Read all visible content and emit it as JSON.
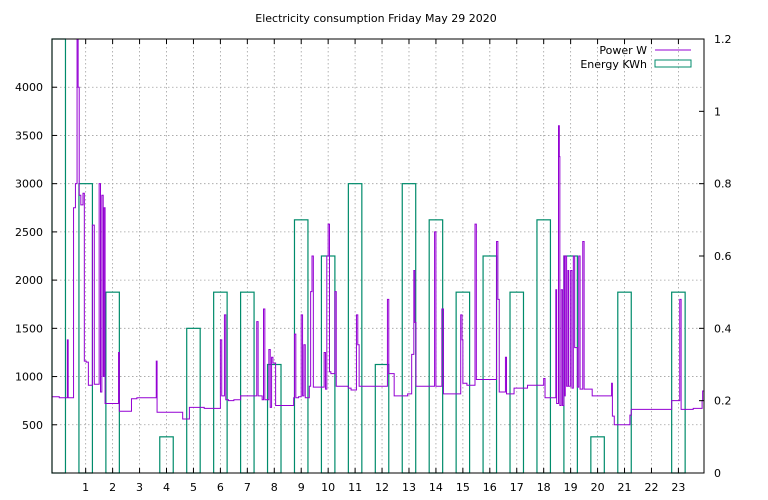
{
  "chart_data": {
    "type": "line",
    "title": "Electricity consumption Friday May 29 2020",
    "xlabel": "",
    "ylabel": "",
    "y2label": "",
    "x_axis": {
      "range": [
        -0.25,
        23.95
      ],
      "ticks": [
        1,
        2,
        3,
        4,
        5,
        6,
        7,
        8,
        9,
        10,
        11,
        12,
        13,
        14,
        15,
        16,
        17,
        18,
        19,
        20,
        21,
        22,
        23
      ]
    },
    "y_axis_left": {
      "range": [
        0,
        4500
      ],
      "ticks": [
        500,
        1000,
        1500,
        2000,
        2500,
        3000,
        3500,
        4000
      ]
    },
    "y_axis_right": {
      "range": [
        0,
        1.2
      ],
      "ticks": [
        0,
        0.2,
        0.4,
        0.6,
        0.8,
        1,
        1.2
      ],
      "tick_labels": [
        "0",
        "0.2",
        "0.4",
        "0.6",
        "0.8",
        "1",
        "1.2"
      ]
    },
    "grid": true,
    "legend_position": "top-right",
    "series": [
      {
        "name": "Power W",
        "style": "steps",
        "axis": "left",
        "color": "#9400d3",
        "points": [
          [
            -0.25,
            790
          ],
          [
            0.02,
            780
          ],
          [
            0.3,
            780
          ],
          [
            0.32,
            1380
          ],
          [
            0.35,
            780
          ],
          [
            0.55,
            2750
          ],
          [
            0.62,
            3000
          ],
          [
            0.68,
            4500
          ],
          [
            0.72,
            4000
          ],
          [
            0.76,
            2880
          ],
          [
            0.82,
            2780
          ],
          [
            0.9,
            2900
          ],
          [
            0.95,
            1160
          ],
          [
            1.02,
            1150
          ],
          [
            1.1,
            910
          ],
          [
            1.25,
            2570
          ],
          [
            1.32,
            920
          ],
          [
            1.45,
            920
          ],
          [
            1.5,
            3000
          ],
          [
            1.55,
            840
          ],
          [
            1.6,
            2880
          ],
          [
            1.65,
            1000
          ],
          [
            1.68,
            2750
          ],
          [
            1.72,
            720
          ],
          [
            2.0,
            720
          ],
          [
            2.2,
            720
          ],
          [
            2.22,
            1250
          ],
          [
            2.25,
            640
          ],
          [
            2.45,
            640
          ],
          [
            2.7,
            770
          ],
          [
            2.9,
            780
          ],
          [
            3.0,
            780
          ],
          [
            3.25,
            780
          ],
          [
            3.6,
            780
          ],
          [
            3.62,
            1160
          ],
          [
            3.65,
            630
          ],
          [
            4.3,
            630
          ],
          [
            4.6,
            560
          ],
          [
            4.85,
            680
          ],
          [
            5.3,
            680
          ],
          [
            5.4,
            670
          ],
          [
            5.95,
            670
          ],
          [
            6.0,
            1380
          ],
          [
            6.05,
            800
          ],
          [
            6.15,
            1640
          ],
          [
            6.2,
            760
          ],
          [
            6.3,
            750
          ],
          [
            6.5,
            760
          ],
          [
            6.75,
            800
          ],
          [
            7.0,
            800
          ],
          [
            7.25,
            800
          ],
          [
            7.35,
            1570
          ],
          [
            7.4,
            800
          ],
          [
            7.55,
            760
          ],
          [
            7.6,
            1700
          ],
          [
            7.65,
            760
          ],
          [
            7.8,
            1280
          ],
          [
            7.85,
            680
          ],
          [
            7.9,
            1200
          ],
          [
            7.95,
            1140
          ],
          [
            8.05,
            700
          ],
          [
            8.6,
            700
          ],
          [
            8.72,
            780
          ],
          [
            8.75,
            1440
          ],
          [
            8.8,
            780
          ],
          [
            8.9,
            790
          ],
          [
            9.0,
            1640
          ],
          [
            9.05,
            800
          ],
          [
            9.1,
            1330
          ],
          [
            9.15,
            780
          ],
          [
            9.3,
            900
          ],
          [
            9.35,
            1880
          ],
          [
            9.4,
            2250
          ],
          [
            9.45,
            890
          ],
          [
            9.75,
            890
          ],
          [
            9.85,
            1250
          ],
          [
            9.9,
            870
          ],
          [
            9.95,
            2250
          ],
          [
            10.0,
            2580
          ],
          [
            10.05,
            1050
          ],
          [
            10.1,
            1030
          ],
          [
            10.25,
            1880
          ],
          [
            10.3,
            900
          ],
          [
            10.5,
            900
          ],
          [
            10.75,
            880
          ],
          [
            10.85,
            860
          ],
          [
            11.05,
            1640
          ],
          [
            11.1,
            1330
          ],
          [
            11.15,
            900
          ],
          [
            11.55,
            900
          ],
          [
            11.7,
            900
          ],
          [
            11.9,
            900
          ],
          [
            12.2,
            1800
          ],
          [
            12.25,
            1030
          ],
          [
            12.3,
            1030
          ],
          [
            12.45,
            800
          ],
          [
            12.55,
            800
          ],
          [
            12.75,
            800
          ],
          [
            12.95,
            820
          ],
          [
            13.1,
            1230
          ],
          [
            13.18,
            2100
          ],
          [
            13.22,
            1560
          ],
          [
            13.26,
            900
          ],
          [
            13.5,
            900
          ],
          [
            13.9,
            900
          ],
          [
            13.95,
            2500
          ],
          [
            14.0,
            900
          ],
          [
            14.2,
            900
          ],
          [
            14.22,
            1700
          ],
          [
            14.28,
            820
          ],
          [
            14.6,
            820
          ],
          [
            14.75,
            820
          ],
          [
            14.92,
            1640
          ],
          [
            14.97,
            1380
          ],
          [
            15.0,
            930
          ],
          [
            15.15,
            910
          ],
          [
            15.45,
            2580
          ],
          [
            15.5,
            970
          ],
          [
            15.8,
            970
          ],
          [
            16.05,
            970
          ],
          [
            16.25,
            2400
          ],
          [
            16.3,
            1800
          ],
          [
            16.35,
            840
          ],
          [
            16.5,
            840
          ],
          [
            16.58,
            1200
          ],
          [
            16.62,
            820
          ],
          [
            16.8,
            820
          ],
          [
            16.9,
            880
          ],
          [
            17.2,
            880
          ],
          [
            17.4,
            910
          ],
          [
            17.6,
            910
          ],
          [
            17.85,
            910
          ],
          [
            18.0,
            980
          ],
          [
            18.05,
            780
          ],
          [
            18.15,
            780
          ],
          [
            18.45,
            1900
          ],
          [
            18.48,
            720
          ],
          [
            18.55,
            3600
          ],
          [
            18.58,
            3280
          ],
          [
            18.6,
            700
          ],
          [
            18.65,
            1900
          ],
          [
            18.7,
            700
          ],
          [
            18.75,
            2250
          ],
          [
            18.78,
            800
          ],
          [
            18.8,
            2250
          ],
          [
            18.85,
            900
          ],
          [
            18.9,
            2100
          ],
          [
            18.93,
            900
          ],
          [
            19.0,
            2100
          ],
          [
            19.05,
            880
          ],
          [
            19.1,
            2250
          ],
          [
            19.15,
            1300
          ],
          [
            19.25,
            890
          ],
          [
            19.3,
            2250
          ],
          [
            19.35,
            870
          ],
          [
            19.45,
            2400
          ],
          [
            19.5,
            870
          ],
          [
            19.55,
            870
          ],
          [
            19.75,
            870
          ],
          [
            19.8,
            800
          ],
          [
            20.5,
            800
          ],
          [
            20.52,
            930
          ],
          [
            20.55,
            590
          ],
          [
            20.6,
            590
          ],
          [
            20.62,
            500
          ],
          [
            20.7,
            500
          ],
          [
            21.05,
            500
          ],
          [
            21.2,
            600
          ],
          [
            21.25,
            660
          ],
          [
            21.5,
            660
          ],
          [
            21.85,
            660
          ],
          [
            22.2,
            660
          ],
          [
            22.6,
            660
          ],
          [
            22.75,
            750
          ],
          [
            22.85,
            750
          ],
          [
            23.0,
            750
          ],
          [
            23.05,
            1800
          ],
          [
            23.1,
            660
          ],
          [
            23.3,
            660
          ],
          [
            23.55,
            670
          ],
          [
            23.85,
            670
          ],
          [
            23.88,
            750
          ],
          [
            23.9,
            850
          ],
          [
            23.95,
            850
          ]
        ]
      },
      {
        "name": "Energy KWh",
        "style": "boxes",
        "axis": "right",
        "color": "#008b6b",
        "boxes": [
          {
            "center": 0.0,
            "width": 0.5,
            "value": 1.2
          },
          {
            "center": 1.0,
            "width": 0.5,
            "value": 0.8
          },
          {
            "center": 2.0,
            "width": 0.5,
            "value": 0.5
          },
          {
            "center": 4.0,
            "width": 0.5,
            "value": 0.1
          },
          {
            "center": 5.0,
            "width": 0.5,
            "value": 0.4
          },
          {
            "center": 6.0,
            "width": 0.5,
            "value": 0.5
          },
          {
            "center": 7.0,
            "width": 0.5,
            "value": 0.5
          },
          {
            "center": 8.0,
            "width": 0.5,
            "value": 0.3
          },
          {
            "center": 9.0,
            "width": 0.5,
            "value": 0.7
          },
          {
            "center": 10.0,
            "width": 0.5,
            "value": 0.6
          },
          {
            "center": 11.0,
            "width": 0.5,
            "value": 0.8
          },
          {
            "center": 12.0,
            "width": 0.5,
            "value": 0.3
          },
          {
            "center": 13.0,
            "width": 0.5,
            "value": 0.8
          },
          {
            "center": 14.0,
            "width": 0.5,
            "value": 0.7
          },
          {
            "center": 15.0,
            "width": 0.5,
            "value": 0.5
          },
          {
            "center": 16.0,
            "width": 0.5,
            "value": 0.6
          },
          {
            "center": 17.0,
            "width": 0.5,
            "value": 0.5
          },
          {
            "center": 18.0,
            "width": 0.5,
            "value": 0.7
          },
          {
            "center": 19.0,
            "width": 0.5,
            "value": 0.6
          },
          {
            "center": 20.0,
            "width": 0.5,
            "value": 0.1
          },
          {
            "center": 21.0,
            "width": 0.5,
            "value": 0.5
          },
          {
            "center": 23.0,
            "width": 0.5,
            "value": 0.5
          }
        ]
      }
    ]
  }
}
